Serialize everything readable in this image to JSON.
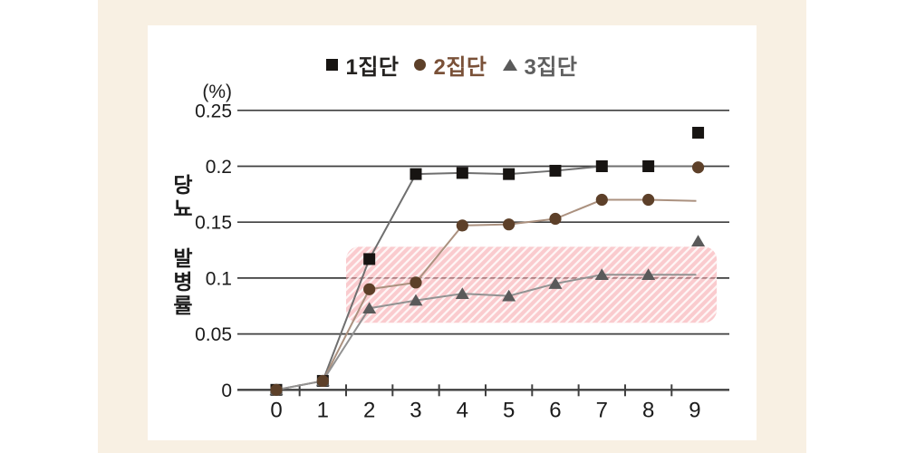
{
  "page": {
    "outer_background": "#ffffff",
    "card_background": "#f8f0e3",
    "panel_background": "#ffffff",
    "grid_color": "#3f3f3f",
    "axis_color": "#3f3f3f",
    "tick_label_color": "#1b1b1b"
  },
  "chart_data": {
    "type": "line",
    "title": "",
    "unit": "(%)",
    "ylabel": "당뇨 발병률",
    "xlabel": "",
    "grid": true,
    "legend_position": "top",
    "x": [
      0,
      1,
      2,
      3,
      4,
      5,
      6,
      7,
      8,
      9
    ],
    "x_tick_labels": [
      "0",
      "1",
      "2",
      "3",
      "4",
      "5",
      "6",
      "7",
      "8",
      "9"
    ],
    "ylim": [
      0,
      0.25
    ],
    "y_ticks": [
      0,
      0.05,
      0.1,
      0.15,
      0.2,
      0.25
    ],
    "y_tick_labels": [
      "0",
      "0.05",
      "0.1",
      "0.15",
      "0.2",
      "0.25"
    ],
    "series": [
      {
        "name": "1집단",
        "marker": "square",
        "marker_color": "#171412",
        "line_color": "#6f6f6f",
        "text_color": "#242220",
        "values": [
          0,
          0.008,
          0.117,
          0.193,
          0.194,
          0.193,
          0.196,
          0.2,
          0.2,
          0.23
        ],
        "line_end_value": 0.2
      },
      {
        "name": "2집단",
        "marker": "circle",
        "marker_color": "#5d4029",
        "line_color": "#ab917f",
        "text_color": "#7a5138",
        "values": [
          0,
          0.008,
          0.09,
          0.096,
          0.147,
          0.148,
          0.153,
          0.17,
          0.17,
          0.199
        ],
        "line_end_value": 0.169
      },
      {
        "name": "3집단",
        "marker": "triangle",
        "marker_color": "#5a5a5a",
        "line_color": "#929292",
        "text_color": "#5f5f5f",
        "values": [
          0,
          0.008,
          0.073,
          0.08,
          0.086,
          0.084,
          0.095,
          0.103,
          0.103,
          0.133
        ],
        "line_end_value": 0.103
      }
    ],
    "highlight_band": {
      "x_start": 1.5,
      "x_end": 9.47,
      "y_bottom": 0.06,
      "y_top": 0.128,
      "fill": "#f7a9ad",
      "hatch_color": "#ffffff"
    }
  }
}
